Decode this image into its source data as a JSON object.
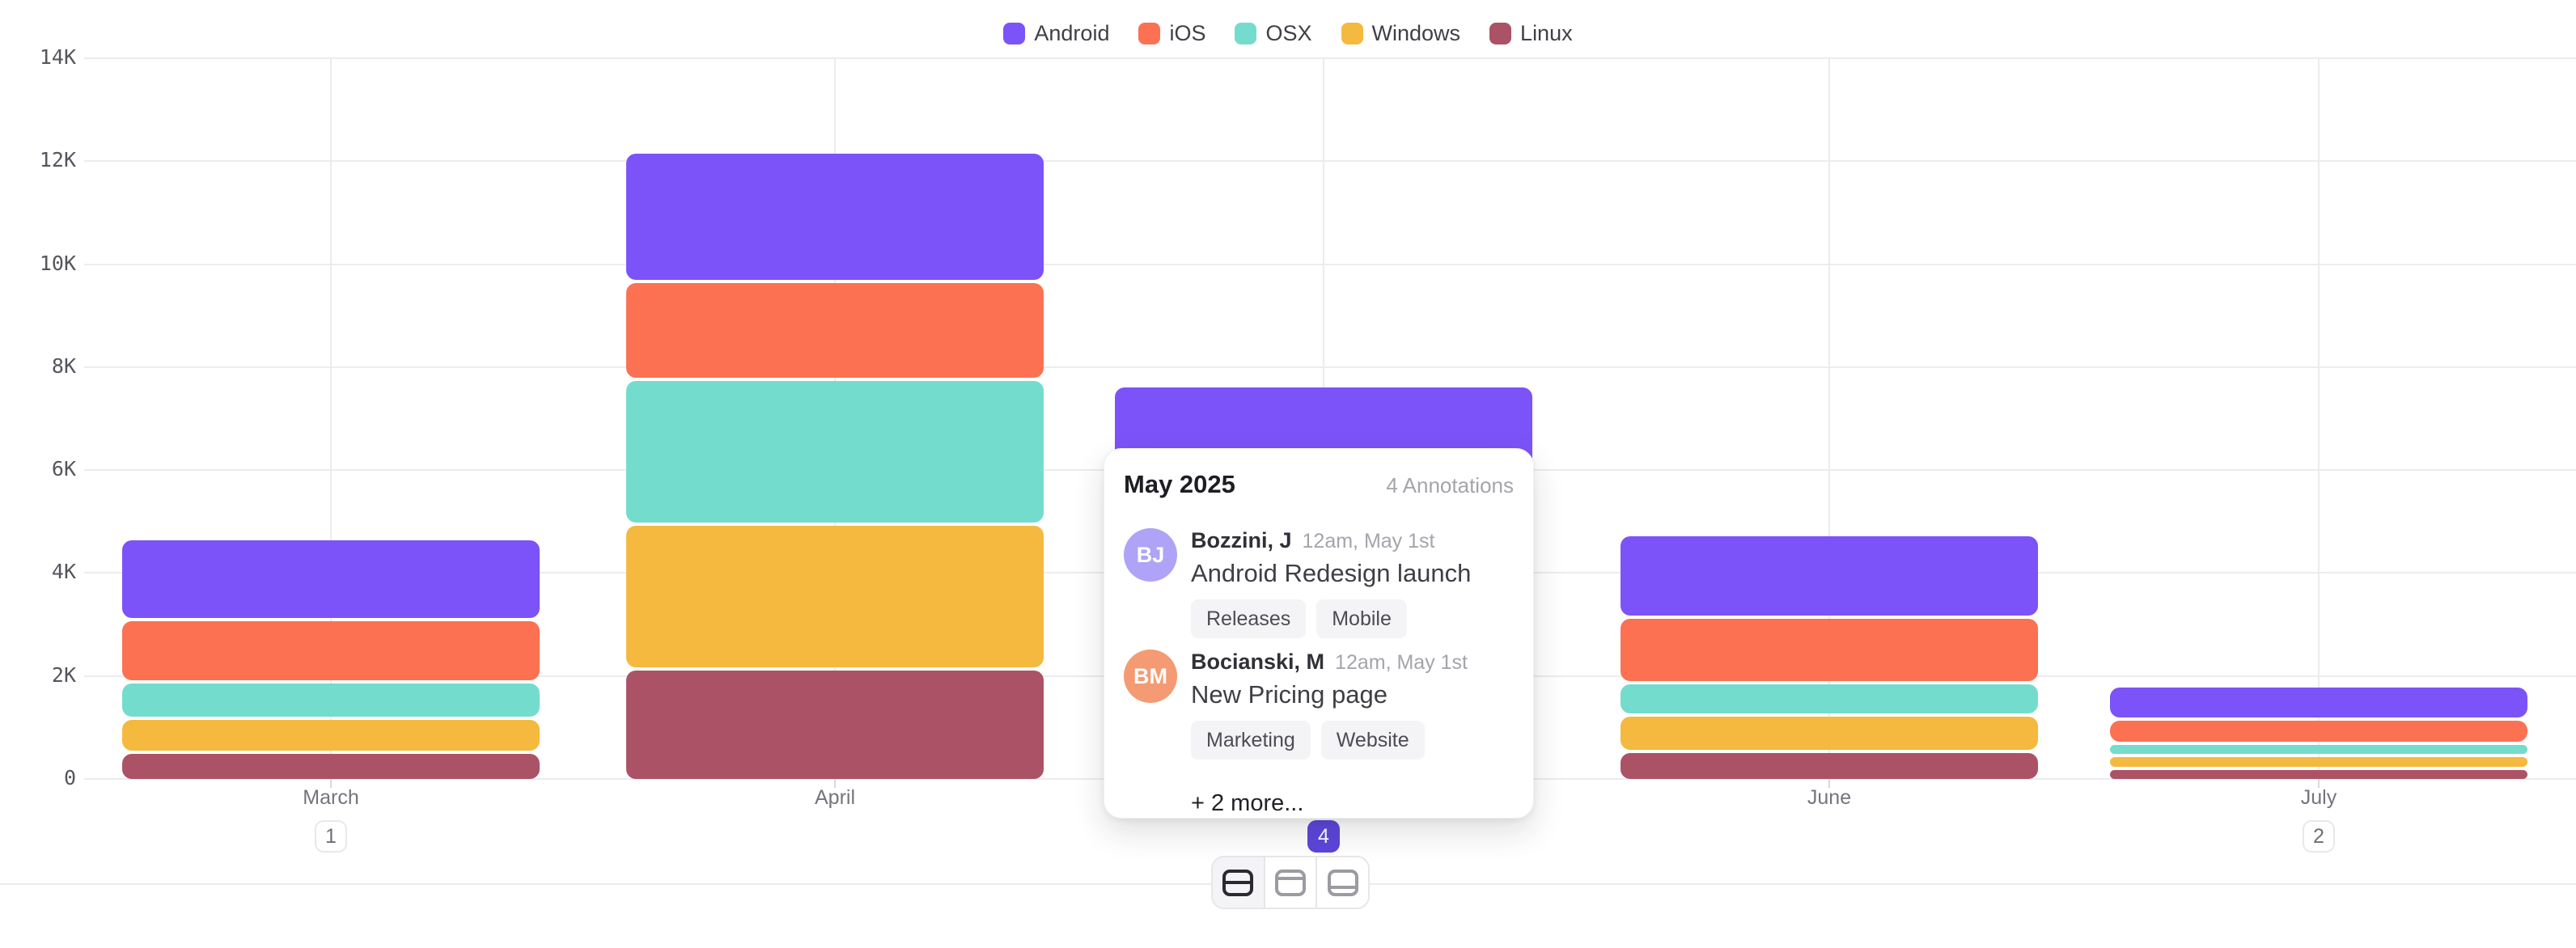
{
  "chart_data": {
    "type": "bar",
    "stacked": true,
    "title": "",
    "xlabel": "",
    "ylabel": "",
    "categories": [
      "March",
      "April",
      "May",
      "June",
      "July"
    ],
    "series": [
      {
        "name": "Android",
        "color": "#7B53F8",
        "values": [
          1500,
          2450,
          1950,
          1550,
          580
        ]
      },
      {
        "name": "iOS",
        "color": "#FB7152",
        "values": [
          1150,
          1850,
          1550,
          1200,
          410
        ]
      },
      {
        "name": "OSX",
        "color": "#74DCCD",
        "values": [
          650,
          2750,
          1500,
          580,
          165
        ]
      },
      {
        "name": "Windows",
        "color": "#F4B93E",
        "values": [
          600,
          2750,
          1300,
          640,
          200
        ]
      },
      {
        "name": "Linux",
        "color": "#AC5266",
        "values": [
          480,
          2100,
          1050,
          500,
          165
        ]
      }
    ],
    "y_ticks": [
      "14K",
      "12K",
      "10K",
      "8K",
      "6K",
      "4K",
      "2K",
      "0"
    ],
    "ylim": [
      0,
      14000
    ],
    "legend_position": "top",
    "grid": true
  },
  "axis": {
    "months": [
      {
        "label": "March",
        "badge": "1"
      },
      {
        "label": "April"
      },
      {
        "label": "May",
        "badge": "4"
      },
      {
        "label": "June"
      },
      {
        "label": "July",
        "badge": "2"
      }
    ],
    "active_month": "May",
    "active_badge_color": "#5C46DB"
  },
  "popover": {
    "title": "May 2025",
    "count_label": "4 Annotations",
    "entries": [
      {
        "initials": "BJ",
        "avatar_color": "#AFA3F7",
        "author": "Bozzini, J",
        "timestamp": "12am, May 1st",
        "text": "Android Redesign launch",
        "tags": [
          "Releases",
          "Mobile"
        ]
      },
      {
        "initials": "BM",
        "avatar_color": "#F49B73",
        "author": "Bocianski, M",
        "timestamp": "12am, May 1st",
        "text": "New Pricing page",
        "tags": [
          "Marketing",
          "Website"
        ]
      }
    ],
    "more_label": "+ 2 more..."
  },
  "footer": {
    "layout_buttons": [
      {
        "icon": "layout-split-horizontal-icon",
        "selected": true
      },
      {
        "icon": "layout-header-icon",
        "selected": false
      },
      {
        "icon": "layout-footer-icon",
        "selected": false
      }
    ]
  }
}
